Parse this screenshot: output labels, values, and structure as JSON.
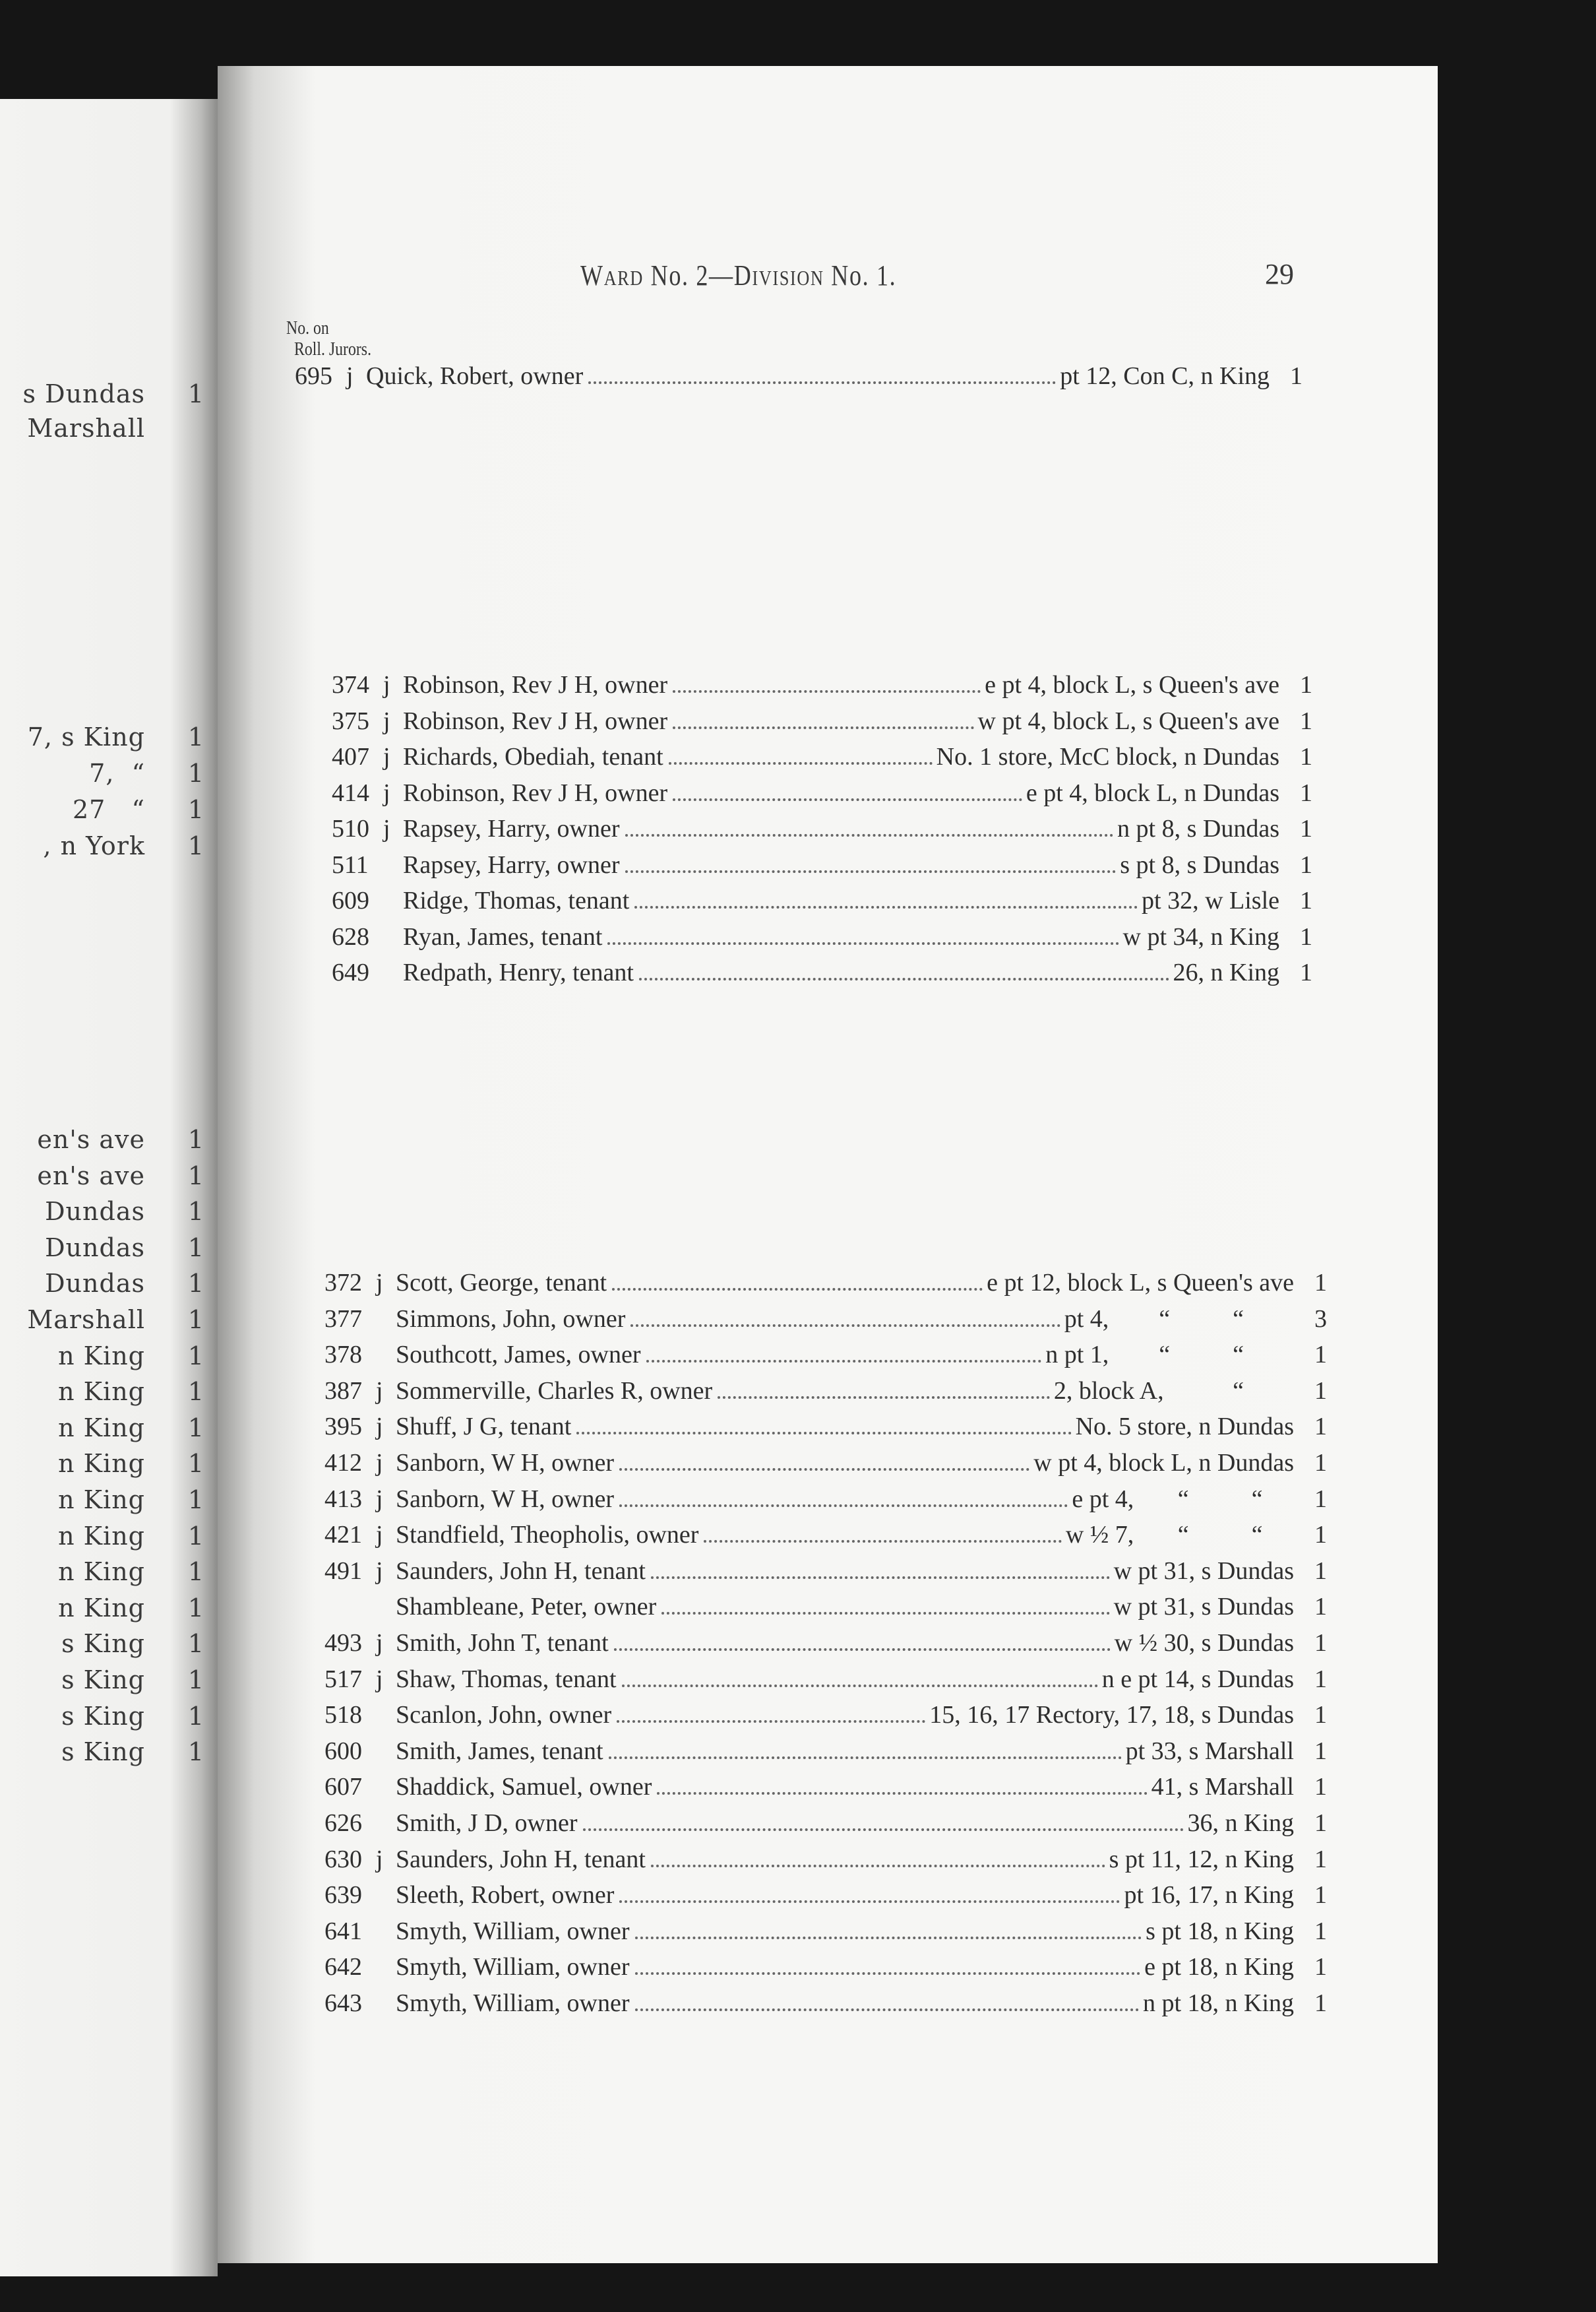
{
  "left_page": {
    "lines_top": [
      {
        "text": "s Dundas",
        "count": "1"
      },
      {
        "text": "Marshall",
        "count": ""
      }
    ],
    "lines_mid": [
      {
        "text": "7, s King",
        "count": "1"
      },
      {
        "text": "7,  “",
        "count": "1"
      },
      {
        "text": "27   “",
        "count": "1"
      },
      {
        "text": ", n York",
        "count": "1"
      }
    ],
    "lines_bottom": [
      {
        "text": "en's ave",
        "count": "1"
      },
      {
        "text": "en's ave",
        "count": "1"
      },
      {
        "text": "Dundas",
        "count": "1"
      },
      {
        "text": "Dundas",
        "count": "1"
      },
      {
        "text": "Dundas",
        "count": "1"
      },
      {
        "text": "Marshall",
        "count": "1"
      },
      {
        "text": "n King",
        "count": "1"
      },
      {
        "text": "n King",
        "count": "1"
      },
      {
        "text": "n King",
        "count": "1"
      },
      {
        "text": "n King",
        "count": "1"
      },
      {
        "text": "n King",
        "count": "1"
      },
      {
        "text": "n King",
        "count": "1"
      },
      {
        "text": "n King",
        "count": "1"
      },
      {
        "text": "n King",
        "count": "1"
      },
      {
        "text": "s King",
        "count": "1"
      },
      {
        "text": "s King",
        "count": "1"
      },
      {
        "text": "s King",
        "count": "1"
      },
      {
        "text": "s King",
        "count": "1"
      }
    ]
  },
  "header": {
    "title_ward": "W",
    "title_ward_sc": "ARD",
    "title_mid": " No. 2—D",
    "title_div_sc": "IVISION",
    "title_end": " No. 1.",
    "page_number": "29"
  },
  "column_headers": {
    "no_on": "No. on",
    "roll_jurors": "Roll. Jurors."
  },
  "section_q": [
    {
      "no": "695",
      "j": "j",
      "name": "Quick, Robert, owner",
      "location": "pt 12, Con C, n King",
      "count": "1"
    }
  ],
  "section_r": [
    {
      "no": "374",
      "j": "j",
      "name": "Robinson, Rev J H, owner",
      "location": "e pt 4, block L, s Queen's ave",
      "count": "1"
    },
    {
      "no": "375",
      "j": "j",
      "name": "Robinson, Rev J H, owner",
      "location": "w pt 4, block L, s Queen's ave",
      "count": "1"
    },
    {
      "no": "407",
      "j": "j",
      "name": "Richards, Obediah, tenant",
      "location": "No. 1 store, McC block, n Dundas",
      "count": "1"
    },
    {
      "no": "414",
      "j": "j",
      "name": "Robinson, Rev J H, owner",
      "location": "e pt 4, block L, n Dundas",
      "count": "1"
    },
    {
      "no": "510",
      "j": "j",
      "name": "Rapsey, Harry, owner",
      "location": "n pt 8, s Dundas",
      "count": "1"
    },
    {
      "no": "511",
      "j": "",
      "name": "Rapsey, Harry, owner",
      "location": "s pt 8, s Dundas",
      "count": "1"
    },
    {
      "no": "609",
      "j": "",
      "name": "Ridge, Thomas, tenant",
      "location": "pt 32, w Lisle",
      "count": "1"
    },
    {
      "no": "628",
      "j": "",
      "name": "Ryan, James, tenant",
      "location": "w pt 34, n King",
      "count": "1"
    },
    {
      "no": "649",
      "j": "",
      "name": "Redpath, Henry, tenant",
      "location": "26, n King",
      "count": "1"
    }
  ],
  "section_s": [
    {
      "no": "372",
      "j": "j",
      "name": "Scott, George, tenant",
      "location": "e pt 12, block L, s Queen's ave",
      "count": "1"
    },
    {
      "no": "377",
      "j": "",
      "name": "Simmons, John, owner",
      "location": "pt 4,        “          “        ",
      "count": "3"
    },
    {
      "no": "378",
      "j": "",
      "name": "Southcott, James, owner",
      "location": "n pt 1,        “          “        ",
      "count": "1"
    },
    {
      "no": "387",
      "j": "j",
      "name": "Sommerville, Charles R, owner",
      "location": "2, block A,           “        ",
      "count": "1"
    },
    {
      "no": "395",
      "j": "j",
      "name": "Shuff, J G, tenant",
      "location": "No. 5 store, n Dundas",
      "count": "1"
    },
    {
      "no": "412",
      "j": "j",
      "name": "Sanborn, W H, owner",
      "location": "w pt 4, block L, n Dundas",
      "count": "1"
    },
    {
      "no": "413",
      "j": "j",
      "name": "Sanborn, W H, owner",
      "location": "e pt 4,       “          “     ",
      "count": "1"
    },
    {
      "no": "421",
      "j": "j",
      "name": "Standfield, Theopholis, owner",
      "location": "w ½ 7,       “          “     ",
      "count": "1"
    },
    {
      "no": "491",
      "j": "j",
      "name": "Saunders, John H, tenant",
      "location": "w pt 31, s Dundas",
      "count": "1"
    },
    {
      "no": "",
      "j": "",
      "name": "Shambleane, Peter, owner",
      "location": "w pt 31, s Dundas",
      "count": "1"
    },
    {
      "no": "493",
      "j": "j",
      "name": "Smith, John T, tenant",
      "location": "w ½ 30, s Dundas",
      "count": "1"
    },
    {
      "no": "517",
      "j": "j",
      "name": "Shaw, Thomas, tenant",
      "location": "n e pt 14, s Dundas",
      "count": "1"
    },
    {
      "no": "518",
      "j": "",
      "name": "Scanlon, John, owner",
      "location": "15, 16, 17 Rectory, 17, 18, s Dundas",
      "count": "1"
    },
    {
      "no": "600",
      "j": "",
      "name": "Smith, James, tenant",
      "location": "pt 33, s Marshall",
      "count": "1"
    },
    {
      "no": "607",
      "j": "",
      "name": "Shaddick, Samuel, owner",
      "location": "41, s Marshall",
      "count": "1"
    },
    {
      "no": "626",
      "j": "",
      "name": "Smith, J D, owner",
      "location": "36, n King",
      "count": "1"
    },
    {
      "no": "630",
      "j": "j",
      "name": "Saunders, John H, tenant",
      "location": "s pt 11, 12, n King",
      "count": "1"
    },
    {
      "no": "639",
      "j": "",
      "name": "Sleeth, Robert, owner",
      "location": "pt 16, 17, n King",
      "count": "1"
    },
    {
      "no": "641",
      "j": "",
      "name": "Smyth, William, owner",
      "location": "s pt 18, n King",
      "count": "1"
    },
    {
      "no": "642",
      "j": "",
      "name": "Smyth, William, owner",
      "location": "e pt 18, n King",
      "count": "1"
    },
    {
      "no": "643",
      "j": "",
      "name": "Smyth, William, owner",
      "location": "n pt 18, n King",
      "count": "1"
    }
  ]
}
